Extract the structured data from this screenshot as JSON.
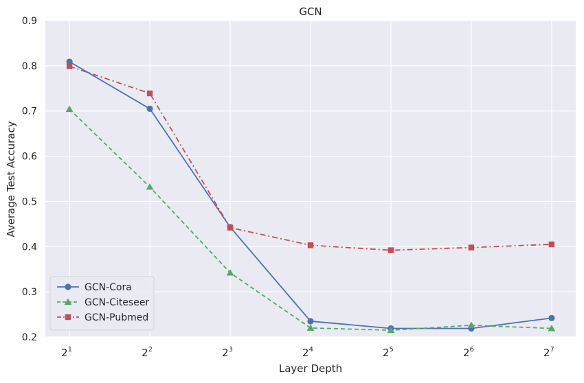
{
  "chart_data": {
    "type": "line",
    "title": "GCN",
    "xlabel": "Layer Depth",
    "ylabel": "Average Test Accuracy",
    "x_base": "2",
    "x": [
      1,
      2,
      3,
      4,
      5,
      6,
      7
    ],
    "xlim": [
      0.7,
      7.3
    ],
    "ylim": [
      0.2,
      0.9
    ],
    "yticks": [
      "0.2",
      "0.3",
      "0.4",
      "0.5",
      "0.6",
      "0.7",
      "0.8",
      "0.9"
    ],
    "grid": true,
    "legend_position": "lower-left",
    "background_color": "#eaeaf2",
    "series": [
      {
        "name": "GCN-Cora",
        "color": "#4c72b0",
        "linestyle": "solid",
        "marker": "circle",
        "values": [
          0.809,
          0.705,
          0.443,
          0.235,
          0.219,
          0.219,
          0.242
        ]
      },
      {
        "name": "GCN-Citeseer",
        "color": "#55a868",
        "linestyle": "dashed",
        "marker": "triangle",
        "values": [
          0.704,
          0.532,
          0.342,
          0.22,
          0.215,
          0.226,
          0.219
        ]
      },
      {
        "name": "GCN-Pubmed",
        "color": "#c44e52",
        "linestyle": "dashdot",
        "marker": "square",
        "values": [
          0.799,
          0.739,
          0.442,
          0.403,
          0.392,
          0.398,
          0.405
        ]
      }
    ]
  }
}
